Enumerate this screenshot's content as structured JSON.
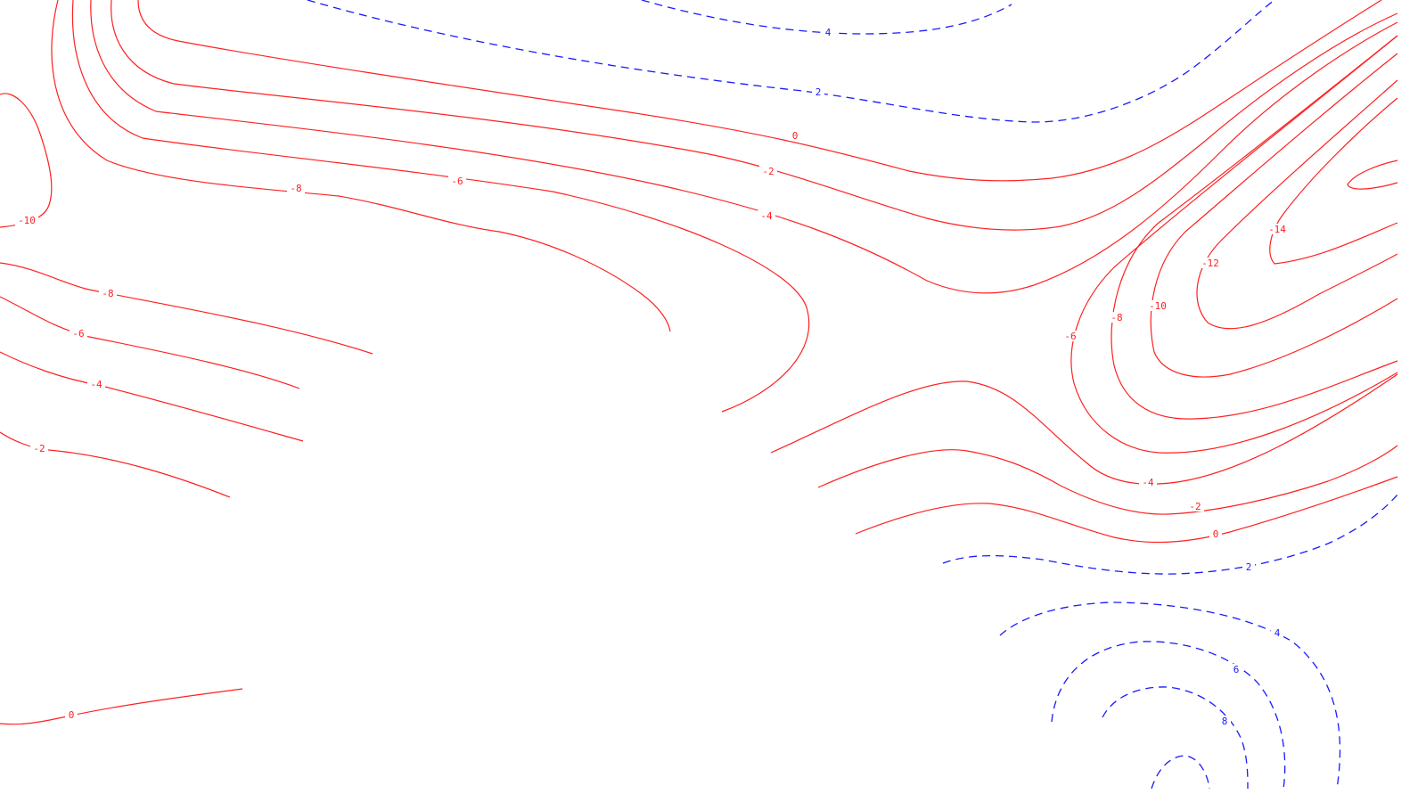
{
  "colors": {
    "negative_contour": "#ff2020",
    "positive_contour": "#1a1aff",
    "background": "#ffffff"
  },
  "contour_labels": {
    "pos_top_4": "4",
    "pos_top_2": "2",
    "neg_top_0": "0",
    "neg_top_m2": "-2",
    "neg_top_m4": "-4",
    "neg_top_m6": "-6",
    "neg_top_m8": "-8",
    "neg_left_m10": "-10",
    "neg_left_m8": "-8",
    "neg_left_m6": "-6",
    "neg_left_m4": "-4",
    "neg_left_m2": "-2",
    "neg_bottom_0": "0",
    "neg_right_m14": "-14",
    "neg_right_m12": "-12",
    "neg_right_m10": "-10",
    "neg_right_m8": "-8",
    "neg_right_m6": "-6",
    "neg_right_m4": "-4",
    "neg_right_m2": "-2",
    "neg_right_0": "0",
    "pos_bottom_2": "2",
    "pos_bottom_4": "4",
    "pos_bottom_6": "6",
    "pos_bottom_8": "8"
  }
}
